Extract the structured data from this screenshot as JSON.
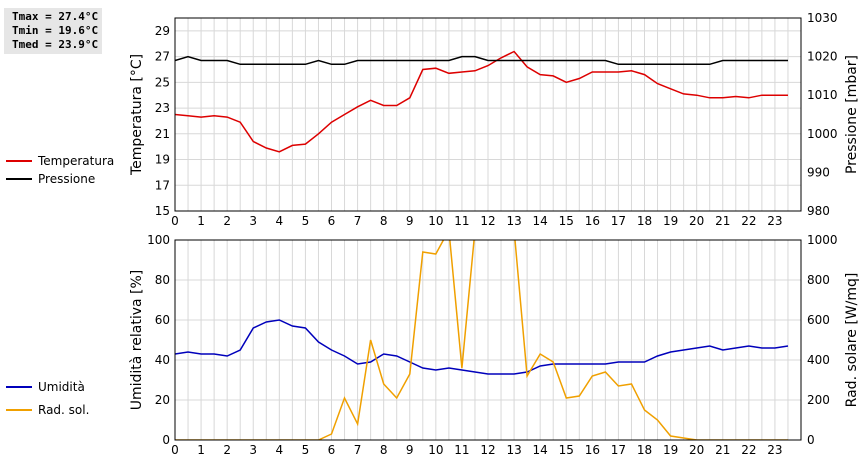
{
  "stats": {
    "tmax": "Tmax = 27.4°C",
    "tmin": "Tmin = 19.6°C",
    "tmed": "Tmed = 23.9°C"
  },
  "chart_data": [
    {
      "type": "line",
      "xlabel": "",
      "x_ticks": [
        "0",
        "1",
        "2",
        "3",
        "4",
        "5",
        "6",
        "7",
        "8",
        "9",
        "10",
        "11",
        "12",
        "13",
        "14",
        "15",
        "16",
        "17",
        "18",
        "19",
        "20",
        "21",
        "22",
        "23"
      ],
      "xlim": [
        0,
        24
      ],
      "ylabel_left": "Temperatura [°C]",
      "ylim_left": [
        15,
        30
      ],
      "yticks_left": [
        "15",
        "17",
        "19",
        "21",
        "23",
        "25",
        "27",
        "29"
      ],
      "ylabel_right": "Pressione [mbar]",
      "ylim_right": [
        980,
        1030
      ],
      "yticks_right": [
        "980",
        "990",
        "1000",
        "1010",
        "1020",
        "1030"
      ],
      "grid": true,
      "legend_placement": "left",
      "series": [
        {
          "name": "Temperatura",
          "axis": "left",
          "color": "#dd0000",
          "x": [
            0,
            0.5,
            1,
            1.5,
            2,
            2.5,
            3,
            3.5,
            4,
            4.5,
            5,
            5.5,
            6,
            6.5,
            7,
            7.5,
            8,
            8.5,
            9,
            9.5,
            10,
            10.5,
            11,
            11.5,
            12,
            12.5,
            13,
            13.5,
            14,
            14.5,
            15,
            15.5,
            16,
            16.5,
            17,
            17.5,
            18,
            18.5,
            19,
            19.5,
            20,
            20.5,
            21,
            21.5,
            22,
            22.5,
            23,
            23.5
          ],
          "values": [
            22.5,
            22.4,
            22.3,
            22.4,
            22.3,
            21.9,
            20.4,
            19.9,
            19.6,
            20.1,
            20.2,
            21.0,
            21.9,
            22.5,
            23.1,
            23.6,
            23.2,
            23.2,
            23.8,
            26.0,
            26.1,
            25.7,
            25.8,
            25.9,
            26.3,
            26.9,
            27.4,
            26.2,
            25.6,
            25.5,
            25.0,
            25.3,
            25.8,
            25.8,
            25.8,
            25.9,
            25.6,
            24.9,
            24.5,
            24.1,
            24.0,
            23.8,
            23.8,
            23.9,
            23.8,
            24.0,
            24.0,
            24.0
          ]
        },
        {
          "name": "Pressione",
          "axis": "right",
          "color": "#000000",
          "x": [
            0,
            0.5,
            1,
            1.5,
            2,
            2.5,
            3,
            3.5,
            4,
            4.5,
            5,
            5.5,
            6,
            6.5,
            7,
            7.5,
            8,
            8.5,
            9,
            9.5,
            10,
            10.5,
            11,
            11.5,
            12,
            12.5,
            13,
            13.5,
            14,
            14.5,
            15,
            15.5,
            16,
            16.5,
            17,
            17.5,
            18,
            18.5,
            19,
            19.5,
            20,
            20.5,
            21,
            21.5,
            22,
            22.5,
            23,
            23.5
          ],
          "values": [
            1019,
            1020,
            1019,
            1019,
            1019,
            1018,
            1018,
            1018,
            1018,
            1018,
            1018,
            1019,
            1018,
            1018,
            1019,
            1019,
            1019,
            1019,
            1019,
            1019,
            1019,
            1019,
            1020,
            1020,
            1019,
            1019,
            1019,
            1019,
            1019,
            1019,
            1019,
            1019,
            1019,
            1019,
            1018,
            1018,
            1018,
            1018,
            1018,
            1018,
            1018,
            1018,
            1019,
            1019,
            1019,
            1019,
            1019,
            1019
          ]
        }
      ]
    },
    {
      "type": "line",
      "xlabel": "",
      "x_ticks": [
        "0",
        "1",
        "2",
        "3",
        "4",
        "5",
        "6",
        "7",
        "8",
        "9",
        "10",
        "11",
        "12",
        "13",
        "14",
        "15",
        "16",
        "17",
        "18",
        "19",
        "20",
        "21",
        "22",
        "23"
      ],
      "xlim": [
        0,
        24
      ],
      "ylabel_left": "Umidità relativa [%]",
      "ylim_left": [
        0,
        100
      ],
      "yticks_left": [
        "0",
        "20",
        "40",
        "60",
        "80",
        "100"
      ],
      "ylabel_right": "Rad. solare [W/mq]",
      "ylim_right": [
        0,
        1000
      ],
      "yticks_right": [
        "0",
        "200",
        "400",
        "600",
        "800",
        "1000"
      ],
      "grid": true,
      "legend_placement": "left",
      "series": [
        {
          "name": "Umidità",
          "axis": "left",
          "color": "#0000bb",
          "x": [
            0,
            0.5,
            1,
            1.5,
            2,
            2.5,
            3,
            3.5,
            4,
            4.5,
            5,
            5.5,
            6,
            6.5,
            7,
            7.5,
            8,
            8.5,
            9,
            9.5,
            10,
            10.5,
            11,
            11.5,
            12,
            12.5,
            13,
            13.5,
            14,
            14.5,
            15,
            15.5,
            16,
            16.5,
            17,
            17.5,
            18,
            18.5,
            19,
            19.5,
            20,
            20.5,
            21,
            21.5,
            22,
            22.5,
            23,
            23.5
          ],
          "values": [
            43,
            44,
            43,
            43,
            42,
            45,
            56,
            59,
            60,
            57,
            56,
            49,
            45,
            42,
            38,
            39,
            43,
            42,
            39,
            36,
            35,
            36,
            35,
            34,
            33,
            33,
            33,
            34,
            37,
            38,
            38,
            38,
            38,
            38,
            39,
            39,
            39,
            42,
            44,
            45,
            46,
            47,
            45,
            46,
            47,
            46,
            46,
            47
          ]
        },
        {
          "name": "Rad. sol.",
          "axis": "right",
          "color": "#f0a000",
          "x": [
            0,
            0.5,
            1,
            1.5,
            2,
            2.5,
            3,
            3.5,
            4,
            4.5,
            5,
            5.5,
            6,
            6.5,
            7,
            7.5,
            8,
            8.5,
            9,
            9.5,
            10,
            10.5,
            11,
            11.5,
            12,
            12.5,
            13,
            13.5,
            14,
            14.5,
            15,
            15.5,
            16,
            16.5,
            17,
            17.5,
            18,
            18.5,
            19,
            19.5,
            20,
            20.5,
            21,
            21.5,
            22,
            22.5,
            23,
            23.5
          ],
          "values": [
            0,
            0,
            0,
            0,
            0,
            0,
            0,
            0,
            0,
            0,
            0,
            0,
            30,
            210,
            80,
            500,
            280,
            210,
            330,
            940,
            930,
            1050,
            360,
            1050,
            1050,
            1050,
            1050,
            320,
            430,
            390,
            210,
            220,
            320,
            340,
            270,
            280,
            150,
            100,
            20,
            10,
            0,
            0,
            0,
            0,
            0,
            0,
            0,
            0
          ]
        }
      ]
    }
  ]
}
